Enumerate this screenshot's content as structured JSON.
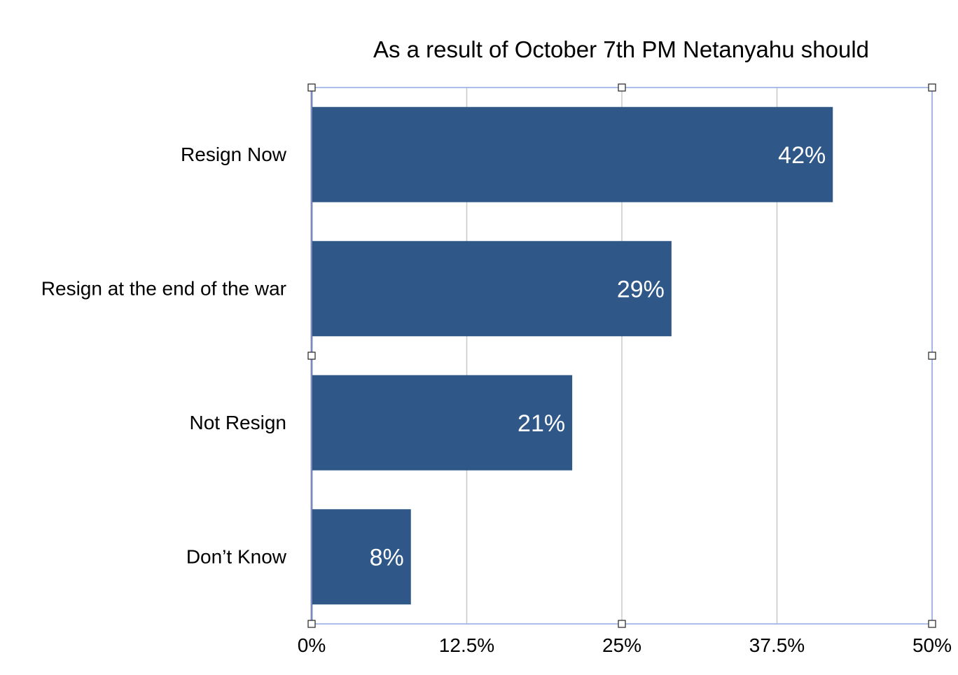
{
  "chart_data": {
    "type": "bar",
    "orientation": "horizontal",
    "title": "As a result of October 7th PM Netanyahu should",
    "categories": [
      "Resign Now",
      "Resign at the end of the war",
      "Not Resign",
      "Don’t Know"
    ],
    "values": [
      42,
      29,
      21,
      8
    ],
    "data_labels": [
      "42%",
      "29%",
      "21%",
      "8%"
    ],
    "xlim": [
      0,
      50
    ],
    "x_ticks": [
      0,
      12.5,
      25,
      37.5,
      50
    ],
    "x_tick_labels": [
      "0%",
      "12.5%",
      "25%",
      "37.5%",
      "50%"
    ],
    "xlabel": "",
    "ylabel": "",
    "grid": true,
    "legend": "none",
    "bar_color": "#2f5889",
    "label_color": "#ffffff",
    "selection_frame_color": "#8fa9e6"
  }
}
